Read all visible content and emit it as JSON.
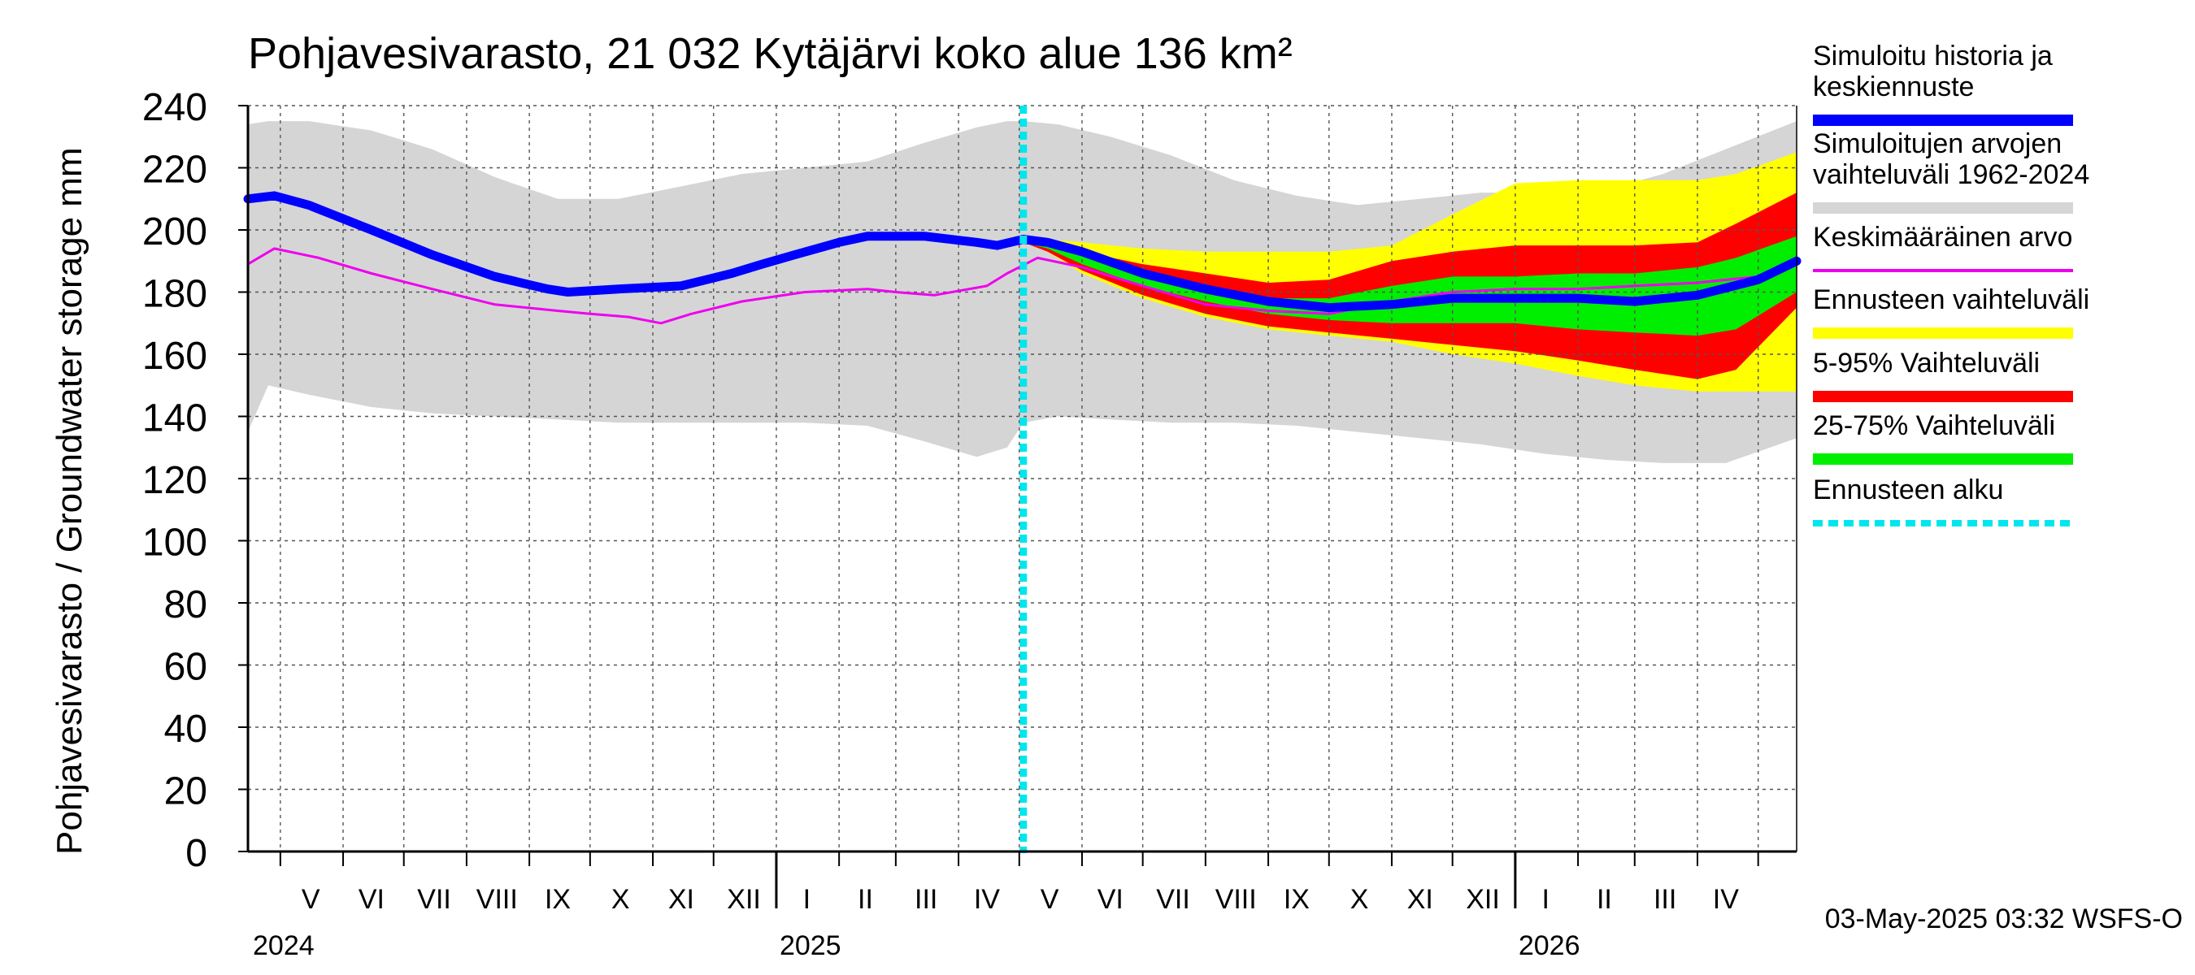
{
  "chart_data": {
    "type": "area",
    "title": "Pohjavesivarasto, 21 032 Kytäjärvi koko alue 136 km²",
    "ylabel": "Pohjavesivarasto / Groundwater storage   mm",
    "ylim": [
      0,
      240
    ],
    "yticks": [
      0,
      20,
      40,
      60,
      80,
      100,
      120,
      140,
      160,
      180,
      200,
      220,
      240
    ],
    "grid": true,
    "legend_position": "right",
    "x_start": "2024-04-15",
    "x_end": "2026-05-20",
    "forecast_start": "2025-05-03",
    "month_labels": [
      {
        "label": "V",
        "date": "2024-05-16"
      },
      {
        "label": "VI",
        "date": "2024-06-15"
      },
      {
        "label": "VII",
        "date": "2024-07-16"
      },
      {
        "label": "VIII",
        "date": "2024-08-16"
      },
      {
        "label": "IX",
        "date": "2024-09-15"
      },
      {
        "label": "X",
        "date": "2024-10-16"
      },
      {
        "label": "XI",
        "date": "2024-11-15"
      },
      {
        "label": "XII",
        "date": "2024-12-16"
      },
      {
        "label": "I",
        "date": "2025-01-16"
      },
      {
        "label": "II",
        "date": "2025-02-14"
      },
      {
        "label": "III",
        "date": "2025-03-16"
      },
      {
        "label": "IV",
        "date": "2025-04-15"
      },
      {
        "label": "V",
        "date": "2025-05-16"
      },
      {
        "label": "VI",
        "date": "2025-06-15"
      },
      {
        "label": "VII",
        "date": "2025-07-16"
      },
      {
        "label": "VIII",
        "date": "2025-08-16"
      },
      {
        "label": "IX",
        "date": "2025-09-15"
      },
      {
        "label": "X",
        "date": "2025-10-16"
      },
      {
        "label": "XI",
        "date": "2025-11-15"
      },
      {
        "label": "XII",
        "date": "2025-12-16"
      },
      {
        "label": "I",
        "date": "2026-01-16"
      },
      {
        "label": "II",
        "date": "2026-02-14"
      },
      {
        "label": "III",
        "date": "2026-03-16"
      },
      {
        "label": "IV",
        "date": "2026-04-15"
      }
    ],
    "month_boundaries": [
      "2024-05-01",
      "2024-06-01",
      "2024-07-01",
      "2024-08-01",
      "2024-09-01",
      "2024-10-01",
      "2024-11-01",
      "2024-12-01",
      "2025-01-01",
      "2025-02-01",
      "2025-03-01",
      "2025-04-01",
      "2025-05-01",
      "2025-06-01",
      "2025-07-01",
      "2025-08-01",
      "2025-09-01",
      "2025-10-01",
      "2025-11-01",
      "2025-12-01",
      "2026-01-01",
      "2026-02-01",
      "2026-03-01",
      "2026-04-01",
      "2026-05-01"
    ],
    "year_labels": [
      {
        "label": "2024",
        "date": "2024-04-15"
      },
      {
        "label": "2025",
        "date": "2025-01-01"
      },
      {
        "label": "2026",
        "date": "2026-01-01"
      }
    ],
    "timestamp": "03-May-2025 03:32 WSFS-O",
    "series": [
      {
        "name": "Simuloitujen arvojen vaihteluväli 1962-2024",
        "role": "band",
        "color": "#d5d5d5",
        "x": [
          "2024-04-15",
          "2024-04-25",
          "2024-05-15",
          "2024-06-15",
          "2024-07-15",
          "2024-08-15",
          "2024-09-15",
          "2024-10-15",
          "2024-11-15",
          "2024-12-15",
          "2025-01-15",
          "2025-02-15",
          "2025-03-15",
          "2025-04-10",
          "2025-04-25",
          "2025-05-03",
          "2025-05-20",
          "2025-06-15",
          "2025-07-15",
          "2025-08-15",
          "2025-09-15",
          "2025-10-15",
          "2025-11-15",
          "2025-12-15",
          "2026-01-15",
          "2026-02-15",
          "2026-03-15",
          "2026-04-15",
          "2026-05-20"
        ],
        "lower": [
          135,
          150,
          147,
          143,
          141,
          140,
          139,
          138,
          138,
          138,
          138,
          137,
          132,
          127,
          130,
          138,
          140,
          139,
          138,
          138,
          137,
          135,
          133,
          131,
          128,
          126,
          125,
          125,
          133
        ],
        "upper": [
          234,
          235,
          235,
          232,
          226,
          217,
          210,
          210,
          214,
          218,
          220,
          222,
          228,
          233,
          235,
          235,
          234,
          230,
          224,
          216,
          211,
          208,
          210,
          212,
          212,
          213,
          218,
          226,
          235
        ]
      },
      {
        "name": "Ennusteen vaihteluväli",
        "role": "band",
        "color": "#ffff00",
        "x": [
          "2025-05-03",
          "2025-05-15",
          "2025-06-01",
          "2025-07-01",
          "2025-08-01",
          "2025-09-01",
          "2025-10-01",
          "2025-11-01",
          "2025-12-01",
          "2026-01-01",
          "2026-02-01",
          "2026-03-01",
          "2026-04-01",
          "2026-04-20",
          "2026-05-20"
        ],
        "lower": [
          196,
          193,
          186,
          178,
          172,
          168,
          166,
          164,
          160,
          157,
          153,
          150,
          148,
          148,
          148
        ],
        "upper": [
          197,
          197,
          196,
          194,
          193,
          193,
          193,
          195,
          205,
          215,
          216,
          216,
          216,
          218,
          225
        ]
      },
      {
        "name": "5-95% Vaihteluväli",
        "role": "band",
        "color": "#ff0000",
        "x": [
          "2025-05-03",
          "2025-05-15",
          "2025-06-01",
          "2025-07-01",
          "2025-08-01",
          "2025-09-01",
          "2025-10-01",
          "2025-11-01",
          "2025-12-01",
          "2026-01-01",
          "2026-02-01",
          "2026-03-01",
          "2026-04-01",
          "2026-04-20",
          "2026-05-20"
        ],
        "lower": [
          196,
          193,
          187,
          179,
          173,
          169,
          167,
          165,
          163,
          161,
          158,
          155,
          152,
          155,
          175
        ],
        "upper": [
          197,
          196,
          193,
          189,
          186,
          183,
          184,
          190,
          193,
          195,
          195,
          195,
          196,
          202,
          212
        ]
      },
      {
        "name": "25-75% Vaihteluväli",
        "role": "band",
        "color": "#00ee00",
        "x": [
          "2025-05-03",
          "2025-05-15",
          "2025-06-01",
          "2025-07-01",
          "2025-08-01",
          "2025-09-01",
          "2025-10-01",
          "2025-11-01",
          "2025-12-01",
          "2026-01-01",
          "2026-02-01",
          "2026-03-01",
          "2026-04-01",
          "2026-04-20",
          "2026-05-20"
        ],
        "lower": [
          196,
          194,
          189,
          182,
          177,
          173,
          171,
          170,
          170,
          170,
          168,
          167,
          166,
          168,
          180
        ],
        "upper": [
          197,
          195,
          192,
          187,
          182,
          178,
          178,
          182,
          185,
          185,
          186,
          186,
          188,
          191,
          198
        ]
      },
      {
        "name": "Keskimääräinen arvo",
        "role": "line",
        "color": "#ee00ee",
        "width": 3,
        "x": [
          "2024-04-15",
          "2024-04-28",
          "2024-05-20",
          "2024-06-15",
          "2024-07-15",
          "2024-08-15",
          "2024-09-15",
          "2024-10-01",
          "2024-10-20",
          "2024-11-05",
          "2024-11-20",
          "2024-12-15",
          "2025-01-15",
          "2025-02-15",
          "2025-03-01",
          "2025-03-20",
          "2025-04-15",
          "2025-04-25",
          "2025-05-10",
          "2025-06-01",
          "2025-07-01",
          "2025-08-01",
          "2025-09-01",
          "2025-10-01",
          "2025-11-01",
          "2025-12-01",
          "2026-01-01",
          "2026-02-01",
          "2026-03-01",
          "2026-04-01",
          "2026-05-01",
          "2026-05-20"
        ],
        "values": [
          189,
          194,
          191,
          186,
          181,
          176,
          174,
          173,
          172,
          170,
          173,
          177,
          180,
          181,
          180,
          179,
          182,
          186,
          191,
          188,
          182,
          176,
          174,
          173,
          177,
          180,
          181,
          181,
          182,
          183,
          185,
          190
        ]
      },
      {
        "name": "Simuloitu historia ja keskiennuste",
        "role": "line",
        "color": "#0000ff",
        "width": 11,
        "x": [
          "2024-04-15",
          "2024-04-28",
          "2024-05-15",
          "2024-06-15",
          "2024-07-15",
          "2024-08-15",
          "2024-09-10",
          "2024-09-20",
          "2024-10-15",
          "2024-11-15",
          "2024-12-10",
          "2024-12-25",
          "2025-01-10",
          "2025-02-01",
          "2025-02-15",
          "2025-03-15",
          "2025-04-10",
          "2025-04-20",
          "2025-05-03",
          "2025-05-15",
          "2025-06-01",
          "2025-07-01",
          "2025-08-01",
          "2025-09-01",
          "2025-10-01",
          "2025-11-01",
          "2025-12-01",
          "2026-01-01",
          "2026-02-01",
          "2026-03-01",
          "2026-04-01",
          "2026-05-01",
          "2026-05-20"
        ],
        "values": [
          210,
          211,
          208,
          200,
          192,
          185,
          181,
          180,
          181,
          182,
          186,
          189,
          192,
          196,
          198,
          198,
          196,
          195,
          197,
          196,
          193,
          186,
          181,
          177,
          175,
          176,
          178,
          178,
          178,
          177,
          179,
          184,
          190
        ]
      },
      {
        "name": "Ennusteen alku",
        "role": "vline",
        "color": "#00e6ee",
        "x": "2025-05-03"
      }
    ],
    "legend": [
      {
        "label": "Simuloitu historia ja keskiennuste",
        "color": "#0000ff",
        "style": "thick"
      },
      {
        "label": "Simuloitujen arvojen vaihteluväli 1962-2024",
        "color": "#d5d5d5",
        "style": "thick"
      },
      {
        "label": "Keskimääräinen arvo",
        "color": "#ee00ee",
        "style": "thin"
      },
      {
        "label": "Ennusteen vaihteluväli",
        "color": "#ffff00",
        "style": "thick"
      },
      {
        "label": "5-95% Vaihteluväli",
        "color": "#ff0000",
        "style": "thick"
      },
      {
        "label": "25-75% Vaihteluväli",
        "color": "#00ee00",
        "style": "thick"
      },
      {
        "label": "Ennusteen alku",
        "color": "#00e6ee",
        "style": "dashed"
      }
    ]
  }
}
